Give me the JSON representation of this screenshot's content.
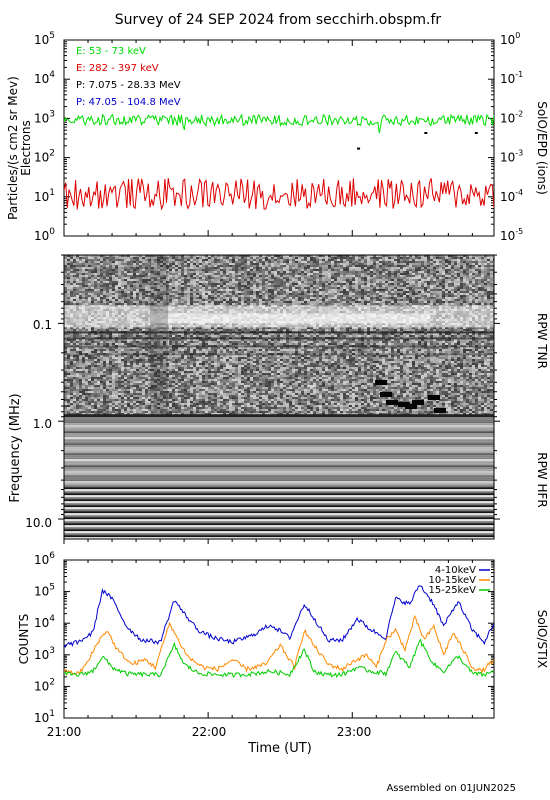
{
  "title": "Survey of 24 SEP 2024 from secchirh.obspm.fr",
  "footer": "Assembled on 01JUN2025",
  "chart_data": [
    {
      "type": "line",
      "name": "epd",
      "ylabel_left": [
        "Particles/(s cm2 sr Mev)",
        "Electrons"
      ],
      "ylabel_right": "SolO/EPD (ions)",
      "yscale": "log",
      "ylim": [
        1,
        100000
      ],
      "yticks": [
        "10^0",
        "10^1",
        "10^2",
        "10^3",
        "10^4",
        "10^5"
      ],
      "right_ylim": [
        1e-05,
        1
      ],
      "right_yticks": [
        "10^-5",
        "10^-4",
        "10^-3",
        "10^-2",
        "10^-1",
        "10^0"
      ],
      "xlim": [
        "21:00",
        "23:59"
      ],
      "legend": [
        {
          "label": "E: 53 - 73 keV",
          "color": "#00dd00"
        },
        {
          "label": "E: 282 - 397 keV",
          "color": "#dd0000"
        },
        {
          "label": "P: 7.075 - 28.33 MeV",
          "color": "#000000"
        },
        {
          "label": "P: 47.05 - 104.8 MeV",
          "color": "#0000cc"
        }
      ],
      "series": [
        {
          "name": "E: 53 - 73 keV",
          "color": "#00dd00",
          "typical": 900,
          "range": [
            500,
            1500
          ]
        },
        {
          "name": "E: 282 - 397 keV",
          "color": "#dd0000",
          "typical": 12,
          "range": [
            4,
            45
          ]
        },
        {
          "name": "P: 7.075 - 28.33 MeV",
          "color": "#000000",
          "points": [
            {
              "x": "23:02",
              "y": 0.0018
            },
            {
              "x": "23:30",
              "y": 0.0045
            },
            {
              "x": "23:51",
              "y": 0.0045
            }
          ]
        }
      ]
    },
    {
      "type": "heatmap",
      "name": "rpw",
      "ylabel": "Frequency (MHz)",
      "yscale": "log",
      "yticks": [
        "0.1",
        "1.0",
        "10.0"
      ],
      "ylim": [
        0.02,
        16
      ],
      "panel_labels": [
        "RPW TNR",
        "RPW HFR"
      ],
      "xlim": [
        "21:00",
        "23:59"
      ]
    },
    {
      "type": "line",
      "name": "stix",
      "ylabel": "COUNTS",
      "ylabel_right": "SolO/STIX",
      "yscale": "log",
      "ylim": [
        10,
        1000000
      ],
      "yticks": [
        "10^1",
        "10^2",
        "10^3",
        "10^4",
        "10^5",
        "10^6"
      ],
      "xlabel": "Time (UT)",
      "xticks": [
        "21:00",
        "22:00",
        "23:00"
      ],
      "xlim": [
        "21:00",
        "23:59"
      ],
      "series": [
        {
          "name": "4-10keV",
          "color": "#0000cc",
          "x": [
            "21:00",
            "21:06",
            "21:12",
            "21:16",
            "21:20",
            "21:26",
            "21:32",
            "21:40",
            "21:46",
            "21:50",
            "21:56",
            "22:02",
            "22:10",
            "22:18",
            "22:26",
            "22:34",
            "22:40",
            "22:44",
            "22:50",
            "22:56",
            "23:02",
            "23:08",
            "23:14",
            "23:18",
            "23:24",
            "23:28",
            "23:34",
            "23:38",
            "23:44",
            "23:50",
            "23:55",
            "23:59"
          ],
          "values": [
            2000,
            2500,
            5000,
            110000,
            60000,
            8000,
            3000,
            2500,
            55000,
            20000,
            6000,
            3500,
            2500,
            4000,
            9000,
            3500,
            40000,
            15000,
            2800,
            3000,
            14000,
            6000,
            3500,
            60000,
            40000,
            170000,
            40000,
            8000,
            50000,
            6000,
            2500,
            10000
          ]
        },
        {
          "name": "10-15keV",
          "color": "#ff8800",
          "x": [
            "21:00",
            "21:06",
            "21:10",
            "21:14",
            "21:18",
            "21:22",
            "21:28",
            "21:34",
            "21:38",
            "21:44",
            "21:48",
            "21:52",
            "21:58",
            "22:04",
            "22:10",
            "22:16",
            "22:24",
            "22:30",
            "22:36",
            "22:40",
            "22:44",
            "22:50",
            "22:56",
            "23:00",
            "23:06",
            "23:10",
            "23:14",
            "23:18",
            "23:22",
            "23:26",
            "23:30",
            "23:34",
            "23:38",
            "23:42",
            "23:46",
            "23:50",
            "23:54",
            "23:59"
          ],
          "values": [
            300,
            250,
            600,
            2500,
            6000,
            1500,
            500,
            700,
            400,
            10000,
            2500,
            800,
            400,
            350,
            700,
            350,
            500,
            2000,
            400,
            6000,
            2000,
            500,
            350,
            600,
            1000,
            400,
            3000,
            6000,
            1500,
            15000,
            3000,
            8000,
            1000,
            5000,
            1500,
            400,
            300,
            700
          ]
        },
        {
          "name": "15-25keV",
          "color": "#00cc00",
          "x": [
            "21:00",
            "21:06",
            "21:12",
            "21:16",
            "21:20",
            "21:26",
            "21:32",
            "21:40",
            "21:46",
            "21:50",
            "21:56",
            "22:02",
            "22:10",
            "22:18",
            "22:26",
            "22:34",
            "22:40",
            "22:44",
            "22:50",
            "22:56",
            "23:02",
            "23:08",
            "23:14",
            "23:18",
            "23:24",
            "23:28",
            "23:34",
            "23:38",
            "23:44",
            "23:50",
            "23:55",
            "23:59"
          ],
          "values": [
            250,
            230,
            300,
            900,
            400,
            250,
            240,
            230,
            2000,
            500,
            260,
            240,
            230,
            250,
            300,
            240,
            1500,
            300,
            230,
            240,
            400,
            300,
            260,
            1200,
            400,
            3000,
            500,
            300,
            900,
            260,
            230,
            300
          ]
        }
      ]
    }
  ]
}
